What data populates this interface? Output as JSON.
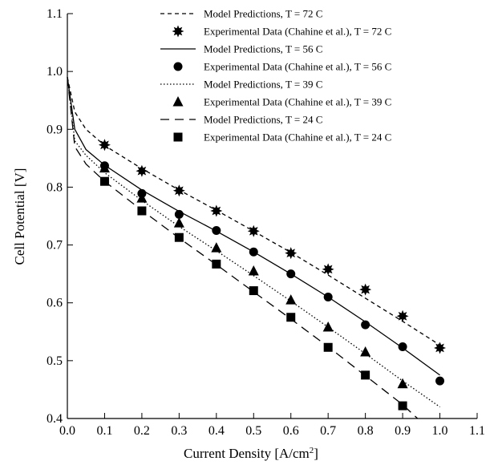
{
  "chart_data": {
    "type": "line",
    "xlabel": "Current Density [A/cm",
    "xlabel_sup": "2",
    "xlabel_end": "]",
    "ylabel": "Cell Potential [V]",
    "xlim": [
      0.0,
      1.1
    ],
    "ylim": [
      0.4,
      1.1
    ],
    "grid": false,
    "legend_position": "top-right",
    "x_ticks": [
      "0.0",
      "0.1",
      "0.2",
      "0.3",
      "0.4",
      "0.5",
      "0.6",
      "0.7",
      "0.8",
      "0.9",
      "1.0",
      "1.1"
    ],
    "y_ticks": [
      "0.4",
      "0.5",
      "0.6",
      "0.7",
      "0.8",
      "0.9",
      "1.0",
      "1.1"
    ],
    "series": [
      {
        "name": "Model Predictions, T = 72 C",
        "kind": "line",
        "style": "short-dash",
        "x": [
          0.0,
          0.02,
          0.05,
          0.1,
          0.2,
          0.3,
          0.4,
          0.5,
          0.6,
          0.7,
          0.8,
          0.9,
          1.0
        ],
        "y": [
          0.99,
          0.93,
          0.9,
          0.872,
          0.832,
          0.795,
          0.76,
          0.724,
          0.687,
          0.648,
          0.608,
          0.568,
          0.527
        ]
      },
      {
        "name": "Experimental Data (Chahine et al.), T = 72 C",
        "kind": "marker",
        "marker": "star",
        "x": [
          0.1,
          0.2,
          0.3,
          0.4,
          0.5,
          0.6,
          0.7,
          0.8,
          0.9,
          1.0
        ],
        "y": [
          0.873,
          0.828,
          0.794,
          0.759,
          0.724,
          0.686,
          0.658,
          0.623,
          0.577,
          0.522
        ]
      },
      {
        "name": "Model Predictions, T = 56 C",
        "kind": "line",
        "style": "solid",
        "x": [
          0.0,
          0.02,
          0.05,
          0.1,
          0.2,
          0.3,
          0.4,
          0.5,
          0.6,
          0.7,
          0.8,
          0.9,
          1.0
        ],
        "y": [
          0.99,
          0.9,
          0.865,
          0.838,
          0.795,
          0.758,
          0.724,
          0.688,
          0.65,
          0.61,
          0.567,
          0.522,
          0.475
        ]
      },
      {
        "name": "Experimental Data (Chahine et al.), T = 56 C",
        "kind": "marker",
        "marker": "circle",
        "x": [
          0.1,
          0.2,
          0.3,
          0.4,
          0.5,
          0.6,
          0.7,
          0.8,
          0.9,
          1.0
        ],
        "y": [
          0.837,
          0.789,
          0.753,
          0.725,
          0.688,
          0.65,
          0.61,
          0.562,
          0.524,
          0.465
        ]
      },
      {
        "name": "Model Predictions, T = 39 C",
        "kind": "line",
        "style": "dotted",
        "x": [
          0.0,
          0.02,
          0.05,
          0.1,
          0.2,
          0.3,
          0.4,
          0.5,
          0.6,
          0.7,
          0.8,
          0.9,
          1.0
        ],
        "y": [
          0.99,
          0.88,
          0.855,
          0.825,
          0.777,
          0.732,
          0.69,
          0.647,
          0.603,
          0.558,
          0.512,
          0.465,
          0.42
        ]
      },
      {
        "name": "Experimental Data (Chahine et al.), T = 39 C",
        "kind": "marker",
        "marker": "triangle",
        "x": [
          0.1,
          0.2,
          0.3,
          0.4,
          0.5,
          0.6,
          0.7,
          0.8,
          0.9
        ],
        "y": [
          0.833,
          0.781,
          0.738,
          0.695,
          0.655,
          0.605,
          0.558,
          0.515,
          0.46
        ]
      },
      {
        "name": "Model Predictions, T = 24 C",
        "kind": "line",
        "style": "long-dash",
        "x": [
          0.0,
          0.02,
          0.05,
          0.1,
          0.2,
          0.3,
          0.4,
          0.5,
          0.6,
          0.7,
          0.8,
          0.9,
          0.94
        ],
        "y": [
          0.99,
          0.87,
          0.84,
          0.81,
          0.76,
          0.712,
          0.666,
          0.619,
          0.572,
          0.524,
          0.474,
          0.424,
          0.4
        ]
      },
      {
        "name": "Experimental Data (Chahine et al.), T = 24 C",
        "kind": "marker",
        "marker": "square",
        "x": [
          0.1,
          0.2,
          0.3,
          0.4,
          0.5,
          0.6,
          0.7,
          0.8,
          0.9
        ],
        "y": [
          0.81,
          0.759,
          0.713,
          0.667,
          0.621,
          0.575,
          0.523,
          0.475,
          0.422
        ]
      }
    ]
  }
}
